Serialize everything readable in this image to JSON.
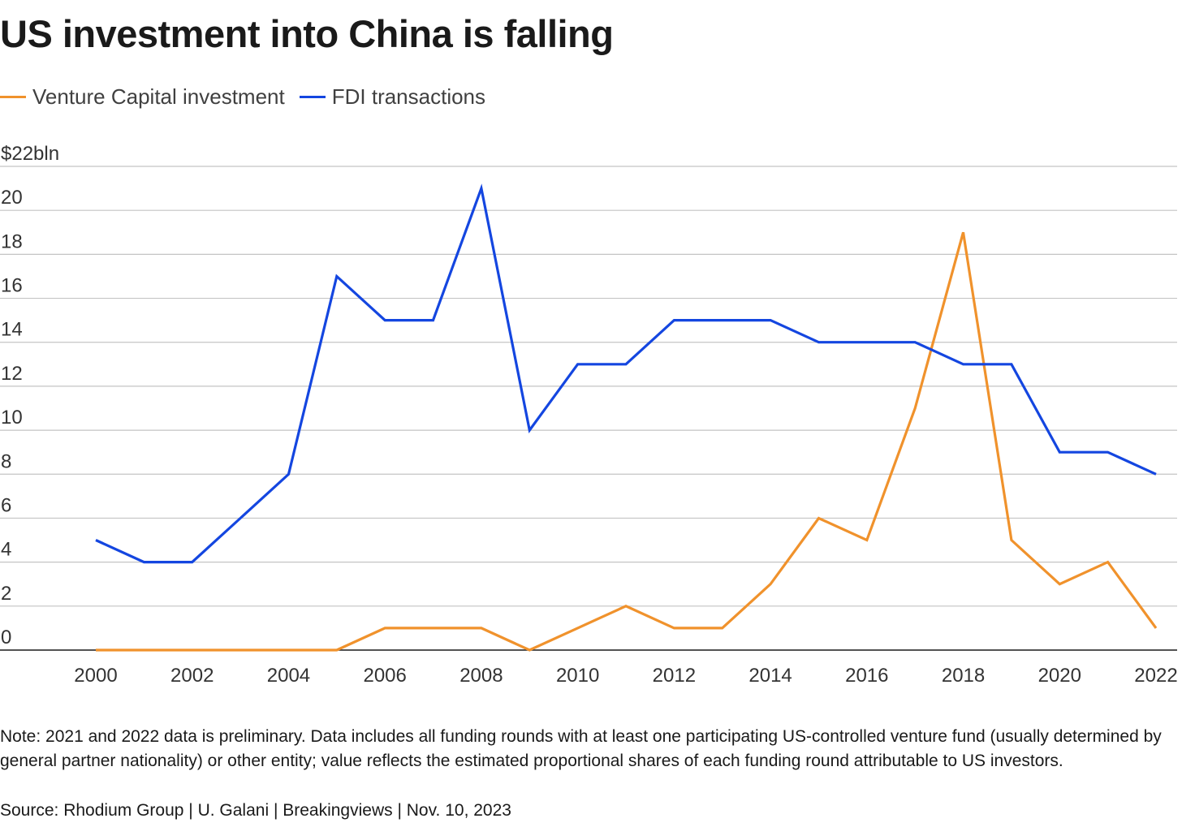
{
  "title": "US investment into China is falling",
  "legend": [
    {
      "label": "Venture Capital investment",
      "color": "#F0922C"
    },
    {
      "label": "FDI transactions",
      "color": "#1446E0"
    }
  ],
  "note": "Note: 2021 and 2022 data is preliminary. Data includes all funding rounds with at least one participating US-controlled venture fund (usually determined by general partner nationality) or other entity; value reflects the estimated proportional shares of each funding round attributable to US investors.",
  "source": "Source: Rhodium Group | U. Galani | Breakingviews | Nov. 10, 2023",
  "chart_data": {
    "type": "line",
    "title": "US investment into China is falling",
    "x": [
      2000,
      2001,
      2002,
      2003,
      2004,
      2005,
      2006,
      2007,
      2008,
      2009,
      2010,
      2011,
      2012,
      2013,
      2014,
      2015,
      2016,
      2017,
      2018,
      2019,
      2020,
      2021,
      2022
    ],
    "series": [
      {
        "name": "Venture Capital investment",
        "color": "#F0922C",
        "values": [
          0,
          0,
          0,
          0,
          0,
          0,
          1,
          1,
          1,
          0,
          1,
          2,
          1,
          1,
          3,
          6,
          5,
          11,
          19,
          5,
          3,
          4,
          1
        ]
      },
      {
        "name": "FDI transactions",
        "color": "#1446E0",
        "values": [
          5,
          4,
          4,
          6,
          8,
          17,
          15,
          15,
          21,
          10,
          13,
          13,
          15,
          15,
          15,
          14,
          14,
          14,
          13,
          13,
          9,
          9,
          8
        ]
      }
    ],
    "xticks": [
      2000,
      2002,
      2004,
      2006,
      2008,
      2010,
      2012,
      2014,
      2016,
      2018,
      2020,
      2022
    ],
    "yticks": [
      0,
      2,
      4,
      6,
      8,
      10,
      12,
      14,
      16,
      18,
      20,
      22
    ],
    "ytick_labels": [
      "0",
      "2",
      "4",
      "6",
      "8",
      "10",
      "12",
      "14",
      "16",
      "18",
      "20",
      "$22bln"
    ],
    "ylim": [
      0,
      22
    ],
    "xlim": [
      2000,
      2022
    ],
    "grid": true,
    "legend_position": "top-left",
    "xlabel": "",
    "ylabel": ""
  }
}
